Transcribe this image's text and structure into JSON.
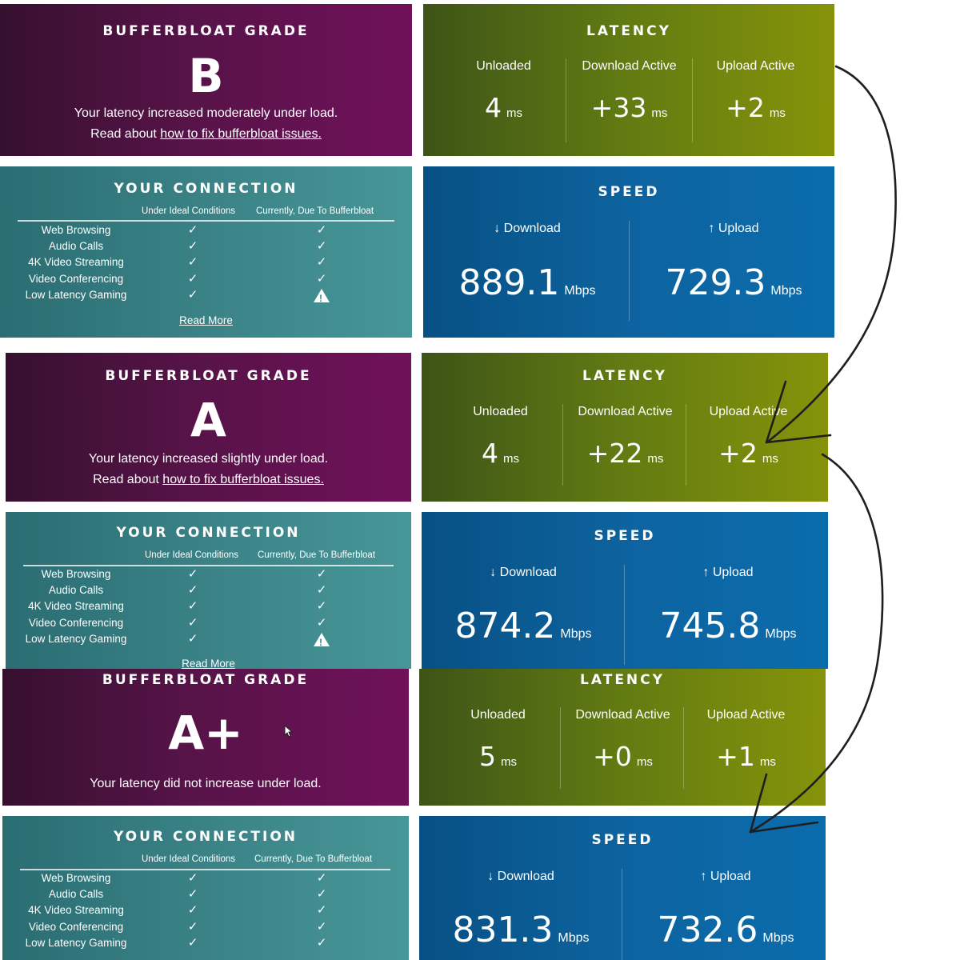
{
  "snapshots": [
    {
      "grade": {
        "heading": "BUFFERBLOAT GRADE",
        "letter": "B",
        "line1": "Your latency increased moderately under load.",
        "line2_prefix": "Read about ",
        "line2_link": "how to fix bufferbloat issues."
      },
      "latency": {
        "heading": "LATENCY",
        "cols": [
          {
            "label": "Unloaded",
            "value": "4",
            "unit": "ms"
          },
          {
            "label": "Download Active",
            "value": "+33",
            "unit": "ms"
          },
          {
            "label": "Upload Active",
            "value": "+2",
            "unit": "ms"
          }
        ]
      },
      "connection": {
        "heading": "YOUR CONNECTION",
        "col1": "Under Ideal Conditions",
        "col2": "Currently, Due To Bufferbloat",
        "read_more": "Read More",
        "rows": [
          {
            "service": "Web Browsing",
            "ideal": "✓",
            "current": "✓"
          },
          {
            "service": "Audio Calls",
            "ideal": "✓",
            "current": "✓"
          },
          {
            "service": "4K Video Streaming",
            "ideal": "✓",
            "current": "✓"
          },
          {
            "service": "Video Conferencing",
            "ideal": "✓",
            "current": "✓"
          },
          {
            "service": "Low Latency Gaming",
            "ideal": "✓",
            "current": "warning"
          }
        ]
      },
      "speed": {
        "heading": "SPEED",
        "download_label": "↓ Download",
        "upload_label": "↑ Upload",
        "download": "889.1",
        "upload": "729.3",
        "unit": "Mbps"
      }
    },
    {
      "grade": {
        "heading": "BUFFERBLOAT GRADE",
        "letter": "A",
        "line1": "Your latency increased slightly under load.",
        "line2_prefix": "Read about ",
        "line2_link": "how to fix bufferbloat issues."
      },
      "latency": {
        "heading": "LATENCY",
        "cols": [
          {
            "label": "Unloaded",
            "value": "4",
            "unit": "ms"
          },
          {
            "label": "Download Active",
            "value": "+22",
            "unit": "ms"
          },
          {
            "label": "Upload Active",
            "value": "+2",
            "unit": "ms"
          }
        ]
      },
      "connection": {
        "heading": "YOUR CONNECTION",
        "col1": "Under Ideal Conditions",
        "col2": "Currently, Due To Bufferbloat",
        "read_more": "Read More",
        "rows": [
          {
            "service": "Web Browsing",
            "ideal": "✓",
            "current": "✓"
          },
          {
            "service": "Audio Calls",
            "ideal": "✓",
            "current": "✓"
          },
          {
            "service": "4K Video Streaming",
            "ideal": "✓",
            "current": "✓"
          },
          {
            "service": "Video Conferencing",
            "ideal": "✓",
            "current": "✓"
          },
          {
            "service": "Low Latency Gaming",
            "ideal": "✓",
            "current": "warning"
          }
        ]
      },
      "speed": {
        "heading": "SPEED",
        "download_label": "↓ Download",
        "upload_label": "↑ Upload",
        "download": "874.2",
        "upload": "745.8",
        "unit": "Mbps"
      }
    },
    {
      "grade": {
        "heading": "BUFFERBLOAT GRADE",
        "letter": "A+",
        "line1": "Your latency did not increase under load.",
        "line2_prefix": "",
        "line2_link": ""
      },
      "latency": {
        "heading": "LATENCY",
        "cols": [
          {
            "label": "Unloaded",
            "value": "5",
            "unit": "ms"
          },
          {
            "label": "Download Active",
            "value": "+0",
            "unit": "ms"
          },
          {
            "label": "Upload Active",
            "value": "+1",
            "unit": "ms"
          }
        ]
      },
      "connection": {
        "heading": "YOUR CONNECTION",
        "col1": "Under Ideal Conditions",
        "col2": "Currently, Due To Bufferbloat",
        "read_more": "",
        "rows": [
          {
            "service": "Web Browsing",
            "ideal": "✓",
            "current": "✓"
          },
          {
            "service": "Audio Calls",
            "ideal": "✓",
            "current": "✓"
          },
          {
            "service": "4K Video Streaming",
            "ideal": "✓",
            "current": "✓"
          },
          {
            "service": "Video Conferencing",
            "ideal": "✓",
            "current": "✓"
          },
          {
            "service": "Low Latency Gaming",
            "ideal": "✓",
            "current": "✓"
          }
        ]
      },
      "speed": {
        "heading": "SPEED",
        "download_label": "↓ Download",
        "upload_label": "↑ Upload",
        "download": "831.3",
        "upload": "732.6",
        "unit": "Mbps"
      }
    }
  ],
  "icons": {
    "check": "check-icon",
    "warning": "warning-triangle-icon",
    "arrow": "hand-drawn-arrow-icon",
    "cursor": "mouse-cursor-icon"
  },
  "colors": {
    "grade": "#5a1249",
    "latency": "#6b8411",
    "connection": "#3a8286",
    "speed": "#0b62a0",
    "arrow": "#222222"
  }
}
